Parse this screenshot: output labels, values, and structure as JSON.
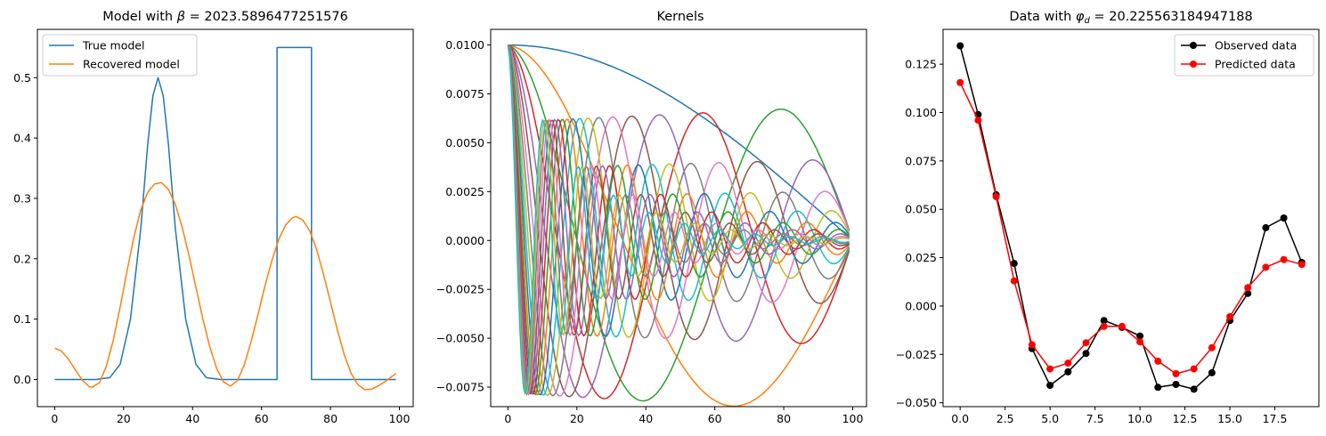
{
  "chart_data": [
    {
      "type": "line",
      "title_prefix": "Model with ",
      "title_symbol": "β",
      "title_suffix": " = 2023.5896477251576",
      "xlim": [
        -5,
        104
      ],
      "ylim": [
        -0.045,
        0.58
      ],
      "xticks": [
        0,
        20,
        40,
        60,
        80,
        100
      ],
      "xtick_labels": [
        "0",
        "20",
        "40",
        "60",
        "80",
        "100"
      ],
      "yticks": [
        0.0,
        0.1,
        0.2,
        0.3,
        0.4,
        0.5
      ],
      "ytick_labels": [
        "0.0",
        "0.1",
        "0.2",
        "0.3",
        "0.4",
        "0.5"
      ],
      "legend": "upper-left",
      "grid": false,
      "series": [
        {
          "name": "True model",
          "color": "#1f77b4",
          "points": [
            [
              0,
              0
            ],
            [
              12,
              0
            ],
            [
              16,
              0.003
            ],
            [
              19,
              0.025
            ],
            [
              22,
              0.1
            ],
            [
              25,
              0.25
            ],
            [
              27,
              0.39
            ],
            [
              28.5,
              0.47
            ],
            [
              30,
              0.5
            ],
            [
              31.5,
              0.47
            ],
            [
              33,
              0.39
            ],
            [
              35,
              0.25
            ],
            [
              38,
              0.1
            ],
            [
              41,
              0.025
            ],
            [
              44,
              0.003
            ],
            [
              48,
              0
            ],
            [
              64.5,
              0
            ],
            [
              64.5,
              0.55
            ],
            [
              74.5,
              0.55
            ],
            [
              74.5,
              0
            ],
            [
              99,
              0
            ]
          ]
        },
        {
          "name": "Recovered model",
          "color": "#ff7f0e",
          "points": [
            [
              0,
              0.052
            ],
            [
              2,
              0.047
            ],
            [
              4,
              0.034
            ],
            [
              6,
              0.016
            ],
            [
              8,
              -0.001
            ],
            [
              10,
              -0.012
            ],
            [
              11,
              -0.013
            ],
            [
              13,
              -0.005
            ],
            [
              15,
              0.022
            ],
            [
              17,
              0.065
            ],
            [
              19,
              0.12
            ],
            [
              21,
              0.18
            ],
            [
              23,
              0.236
            ],
            [
              25,
              0.281
            ],
            [
              27,
              0.31
            ],
            [
              29,
              0.324
            ],
            [
              31,
              0.326
            ],
            [
              33,
              0.315
            ],
            [
              35,
              0.29
            ],
            [
              37,
              0.252
            ],
            [
              39,
              0.205
            ],
            [
              41,
              0.152
            ],
            [
              43,
              0.1
            ],
            [
              45,
              0.054
            ],
            [
              47,
              0.018
            ],
            [
              49,
              -0.004
            ],
            [
              51,
              -0.011
            ],
            [
              53,
              -0.002
            ],
            [
              55,
              0.024
            ],
            [
              57,
              0.063
            ],
            [
              59,
              0.108
            ],
            [
              61,
              0.155
            ],
            [
              63,
              0.197
            ],
            [
              65,
              0.232
            ],
            [
              67,
              0.256
            ],
            [
              69,
              0.268
            ],
            [
              70,
              0.27
            ],
            [
              72,
              0.264
            ],
            [
              74,
              0.246
            ],
            [
              76,
              0.215
            ],
            [
              78,
              0.174
            ],
            [
              80,
              0.128
            ],
            [
              82,
              0.082
            ],
            [
              84,
              0.041
            ],
            [
              86,
              0.01
            ],
            [
              88,
              -0.009
            ],
            [
              90,
              -0.017
            ],
            [
              92,
              -0.016
            ],
            [
              94,
              -0.01
            ],
            [
              96,
              -0.003
            ],
            [
              99,
              0.01
            ]
          ]
        }
      ]
    },
    {
      "type": "line",
      "title": "Kernels",
      "xlim": [
        -5,
        104
      ],
      "ylim": [
        -0.0085,
        0.0108
      ],
      "xticks": [
        0,
        20,
        40,
        60,
        80,
        100
      ],
      "xtick_labels": [
        "0",
        "20",
        "40",
        "60",
        "80",
        "100"
      ],
      "yticks": [
        -0.0075,
        -0.005,
        -0.0025,
        0.0,
        0.0025,
        0.005,
        0.0075,
        0.01
      ],
      "ytick_labels": [
        "−0.0075",
        "−0.0050",
        "−0.0025",
        "0.0000",
        "0.0025",
        "0.0050",
        "0.0075",
        "0.0100"
      ],
      "grid": false,
      "kernel_model": "decaying cosine: 0.01 * exp(-p*x/100) * cos(2*pi*q*x/100), p=0.25*j, q=0.25+0.5*j",
      "kernel_count": 20,
      "colors": [
        "#1f77b4",
        "#ff7f0e",
        "#2ca02c",
        "#d62728",
        "#9467bd",
        "#8c564b",
        "#e377c2",
        "#7f7f7f",
        "#bcbd22",
        "#17becf"
      ]
    },
    {
      "type": "line",
      "title_prefix": "Data with ",
      "title_symbol": "φ",
      "title_subscript": "d",
      "title_suffix": " = 20.225563184947188",
      "xlim": [
        -0.95,
        19.95
      ],
      "ylim": [
        -0.052,
        0.143
      ],
      "xticks": [
        0,
        2.5,
        5,
        7.5,
        10,
        12.5,
        15,
        17.5
      ],
      "xtick_labels": [
        "0.0",
        "2.5",
        "5.0",
        "7.5",
        "10.0",
        "12.5",
        "15.0",
        "17.5"
      ],
      "yticks": [
        -0.05,
        -0.025,
        0.0,
        0.025,
        0.05,
        0.075,
        0.1,
        0.125
      ],
      "ytick_labels": [
        "−0.050",
        "−0.025",
        "0.000",
        "0.025",
        "0.050",
        "0.075",
        "0.100",
        "0.125"
      ],
      "legend": "upper-right",
      "grid": false,
      "x": [
        0,
        1,
        2,
        3,
        4,
        5,
        6,
        7,
        8,
        9,
        10,
        11,
        12,
        13,
        14,
        15,
        16,
        17,
        18,
        19
      ],
      "series": [
        {
          "name": "Observed data",
          "color": "#000000",
          "values": [
            0.1345,
            0.099,
            0.0575,
            0.022,
            -0.022,
            -0.041,
            -0.034,
            -0.0245,
            -0.0075,
            -0.011,
            -0.0155,
            -0.042,
            -0.0405,
            -0.043,
            -0.0345,
            -0.0075,
            0.0065,
            0.0405,
            0.0455,
            0.0225
          ]
        },
        {
          "name": "Predicted data",
          "color": "#ff0000",
          "values": [
            0.1155,
            0.096,
            0.0565,
            0.013,
            -0.02,
            -0.0325,
            -0.0295,
            -0.019,
            -0.0105,
            -0.0105,
            -0.0185,
            -0.0285,
            -0.035,
            -0.0325,
            -0.0215,
            -0.0055,
            0.0095,
            0.02,
            0.024,
            0.0215
          ]
        }
      ]
    }
  ]
}
